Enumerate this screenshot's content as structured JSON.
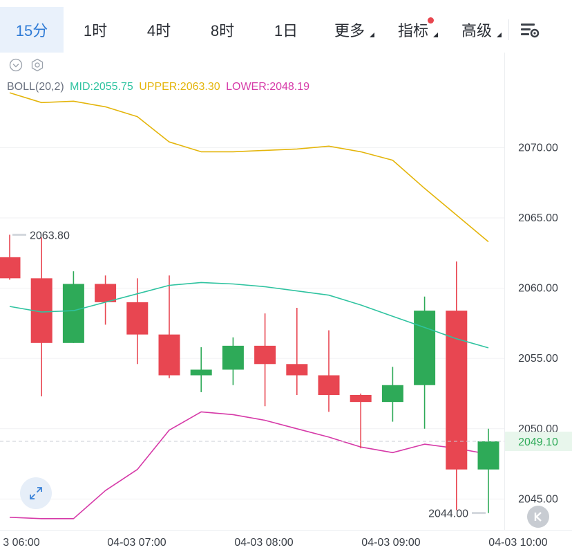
{
  "tabs": [
    {
      "label": "15分",
      "active": true
    },
    {
      "label": "1时"
    },
    {
      "label": "4时"
    },
    {
      "label": "8时"
    },
    {
      "label": "1日"
    },
    {
      "label": "更多",
      "dropdown": true
    },
    {
      "label": "指标",
      "dropdown": true,
      "badge": true
    },
    {
      "label": "高级",
      "dropdown": true
    }
  ],
  "icons": {
    "collapse": "chevron-down-circle-icon",
    "settings": "hexagon-settings-icon",
    "chart_tools": "chart-settings-icon",
    "fullscreen": "expand-icon",
    "kline": "k-icon"
  },
  "indicator": {
    "name": "BOLL(20,2)",
    "mid_label": "MID:2055.75",
    "upper_label": "UPPER:2063.30",
    "lower_label": "LOWER:2048.19"
  },
  "colors": {
    "up": "#2eaa58",
    "down": "#e84651",
    "mid": "#2fc3a0",
    "upper": "#e4b50b",
    "lower": "#d63aa8",
    "accent": "#2f7bd6"
  },
  "chart_data": {
    "type": "candlestick",
    "x_tick_labels": [
      "3 06:00",
      "04-03 07:00",
      "04-03 08:00",
      "04-03 09:00",
      "04-03 10:00"
    ],
    "y_ticks": [
      "2045.00",
      "2050.00",
      "2055.00",
      "2060.00",
      "2065.00",
      "2070.00"
    ],
    "y_range": [
      2043.0,
      2074.2
    ],
    "candles": [
      {
        "o": 2062.2,
        "h": 2063.8,
        "l": 2060.6,
        "c": 2060.7
      },
      {
        "o": 2060.7,
        "h": 2063.6,
        "l": 2052.3,
        "c": 2056.1
      },
      {
        "o": 2056.1,
        "h": 2061.2,
        "l": 2056.1,
        "c": 2060.3
      },
      {
        "o": 2060.3,
        "h": 2060.9,
        "l": 2057.4,
        "c": 2059.0
      },
      {
        "o": 2059.0,
        "h": 2060.7,
        "l": 2054.6,
        "c": 2056.7
      },
      {
        "o": 2056.7,
        "h": 2060.9,
        "l": 2053.6,
        "c": 2053.8
      },
      {
        "o": 2053.8,
        "h": 2055.8,
        "l": 2052.6,
        "c": 2054.2
      },
      {
        "o": 2054.2,
        "h": 2056.5,
        "l": 2053.1,
        "c": 2055.9
      },
      {
        "o": 2055.9,
        "h": 2058.2,
        "l": 2051.6,
        "c": 2054.6
      },
      {
        "o": 2054.6,
        "h": 2058.6,
        "l": 2052.4,
        "c": 2053.8
      },
      {
        "o": 2053.8,
        "h": 2057.0,
        "l": 2051.2,
        "c": 2052.4
      },
      {
        "o": 2052.4,
        "h": 2052.5,
        "l": 2048.6,
        "c": 2051.9
      },
      {
        "o": 2051.9,
        "h": 2054.4,
        "l": 2050.5,
        "c": 2053.1
      },
      {
        "o": 2053.1,
        "h": 2059.4,
        "l": 2050.0,
        "c": 2058.4
      },
      {
        "o": 2058.4,
        "h": 2061.9,
        "l": 2044.2,
        "c": 2047.1
      },
      {
        "o": 2047.1,
        "h": 2050.0,
        "l": 2044.0,
        "c": 2049.1
      }
    ],
    "mid": [
      2058.7,
      2058.3,
      2058.4,
      2059.0,
      2059.6,
      2060.2,
      2060.4,
      2060.3,
      2060.1,
      2059.8,
      2059.5,
      2058.8,
      2058.0,
      2057.2,
      2056.4,
      2055.75
    ],
    "upper": [
      2073.9,
      2073.2,
      2073.3,
      2072.9,
      2072.2,
      2070.4,
      2069.7,
      2069.7,
      2069.8,
      2069.9,
      2070.1,
      2069.7,
      2069.1,
      2067.1,
      2065.2,
      2063.3
    ],
    "lower": [
      2043.7,
      2043.6,
      2043.6,
      2045.6,
      2047.1,
      2049.9,
      2051.2,
      2051.0,
      2050.6,
      2050.0,
      2049.4,
      2048.7,
      2048.3,
      2048.9,
      2048.6,
      2048.19
    ],
    "max_label": "2063.80",
    "min_label": "2044.00",
    "last_price": "2049.10"
  }
}
